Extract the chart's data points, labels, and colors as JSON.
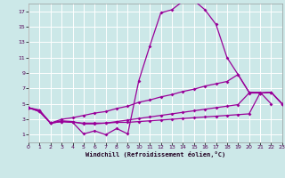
{
  "xlabel": "Windchill (Refroidissement éolien,°C)",
  "xlim": [
    0,
    23
  ],
  "ylim": [
    0,
    18
  ],
  "xticks": [
    0,
    1,
    2,
    3,
    4,
    5,
    6,
    7,
    8,
    9,
    10,
    11,
    12,
    13,
    14,
    15,
    16,
    17,
    18,
    19,
    20,
    21,
    22,
    23
  ],
  "yticks": [
    1,
    3,
    5,
    7,
    9,
    11,
    13,
    15,
    17
  ],
  "bg_color": "#cce8e8",
  "grid_color": "#b0d8d8",
  "line_color": "#990099",
  "line1_x": [
    0,
    1,
    2,
    3,
    4,
    5,
    6,
    7,
    8,
    9,
    10,
    11,
    12,
    13,
    14,
    15,
    16,
    17,
    18,
    19,
    20,
    21,
    22
  ],
  "line1_y": [
    4.5,
    4.2,
    2.5,
    2.7,
    2.6,
    1.1,
    1.5,
    1.0,
    1.8,
    1.1,
    8.0,
    12.5,
    16.8,
    17.2,
    18.3,
    18.4,
    17.2,
    15.3,
    11.0,
    8.8,
    6.5,
    6.5,
    5.0
  ],
  "line2_x": [
    0,
    1,
    2,
    3,
    4,
    5,
    6,
    7,
    8,
    9,
    10,
    11,
    12,
    13,
    14,
    15,
    16,
    17,
    18,
    19,
    20,
    21,
    22,
    23
  ],
  "line2_y": [
    4.5,
    4.1,
    2.5,
    3.0,
    3.2,
    3.5,
    3.8,
    4.0,
    4.4,
    4.7,
    5.2,
    5.5,
    5.9,
    6.2,
    6.6,
    6.9,
    7.3,
    7.6,
    7.9,
    8.8,
    6.5,
    6.4,
    6.5,
    5.0
  ],
  "line3_x": [
    0,
    1,
    2,
    3,
    4,
    5,
    6,
    7,
    8,
    9,
    10,
    11,
    12,
    13,
    14,
    15,
    16,
    17,
    18,
    19,
    20,
    21,
    22,
    23
  ],
  "line3_y": [
    4.5,
    4.0,
    2.5,
    2.8,
    2.7,
    2.4,
    2.4,
    2.5,
    2.7,
    2.9,
    3.1,
    3.3,
    3.5,
    3.7,
    3.9,
    4.1,
    4.3,
    4.5,
    4.7,
    4.9,
    6.4,
    6.4,
    6.5,
    5.0
  ],
  "line4_x": [
    0,
    1,
    2,
    3,
    4,
    5,
    6,
    7,
    8,
    9,
    10,
    11,
    12,
    13,
    14,
    15,
    16,
    17,
    18,
    19,
    20,
    21,
    22,
    23
  ],
  "line4_y": [
    4.5,
    4.0,
    2.5,
    2.7,
    2.6,
    2.5,
    2.5,
    2.5,
    2.6,
    2.6,
    2.7,
    2.8,
    2.9,
    3.0,
    3.1,
    3.2,
    3.3,
    3.4,
    3.5,
    3.6,
    3.7,
    6.4,
    6.5,
    5.0
  ]
}
